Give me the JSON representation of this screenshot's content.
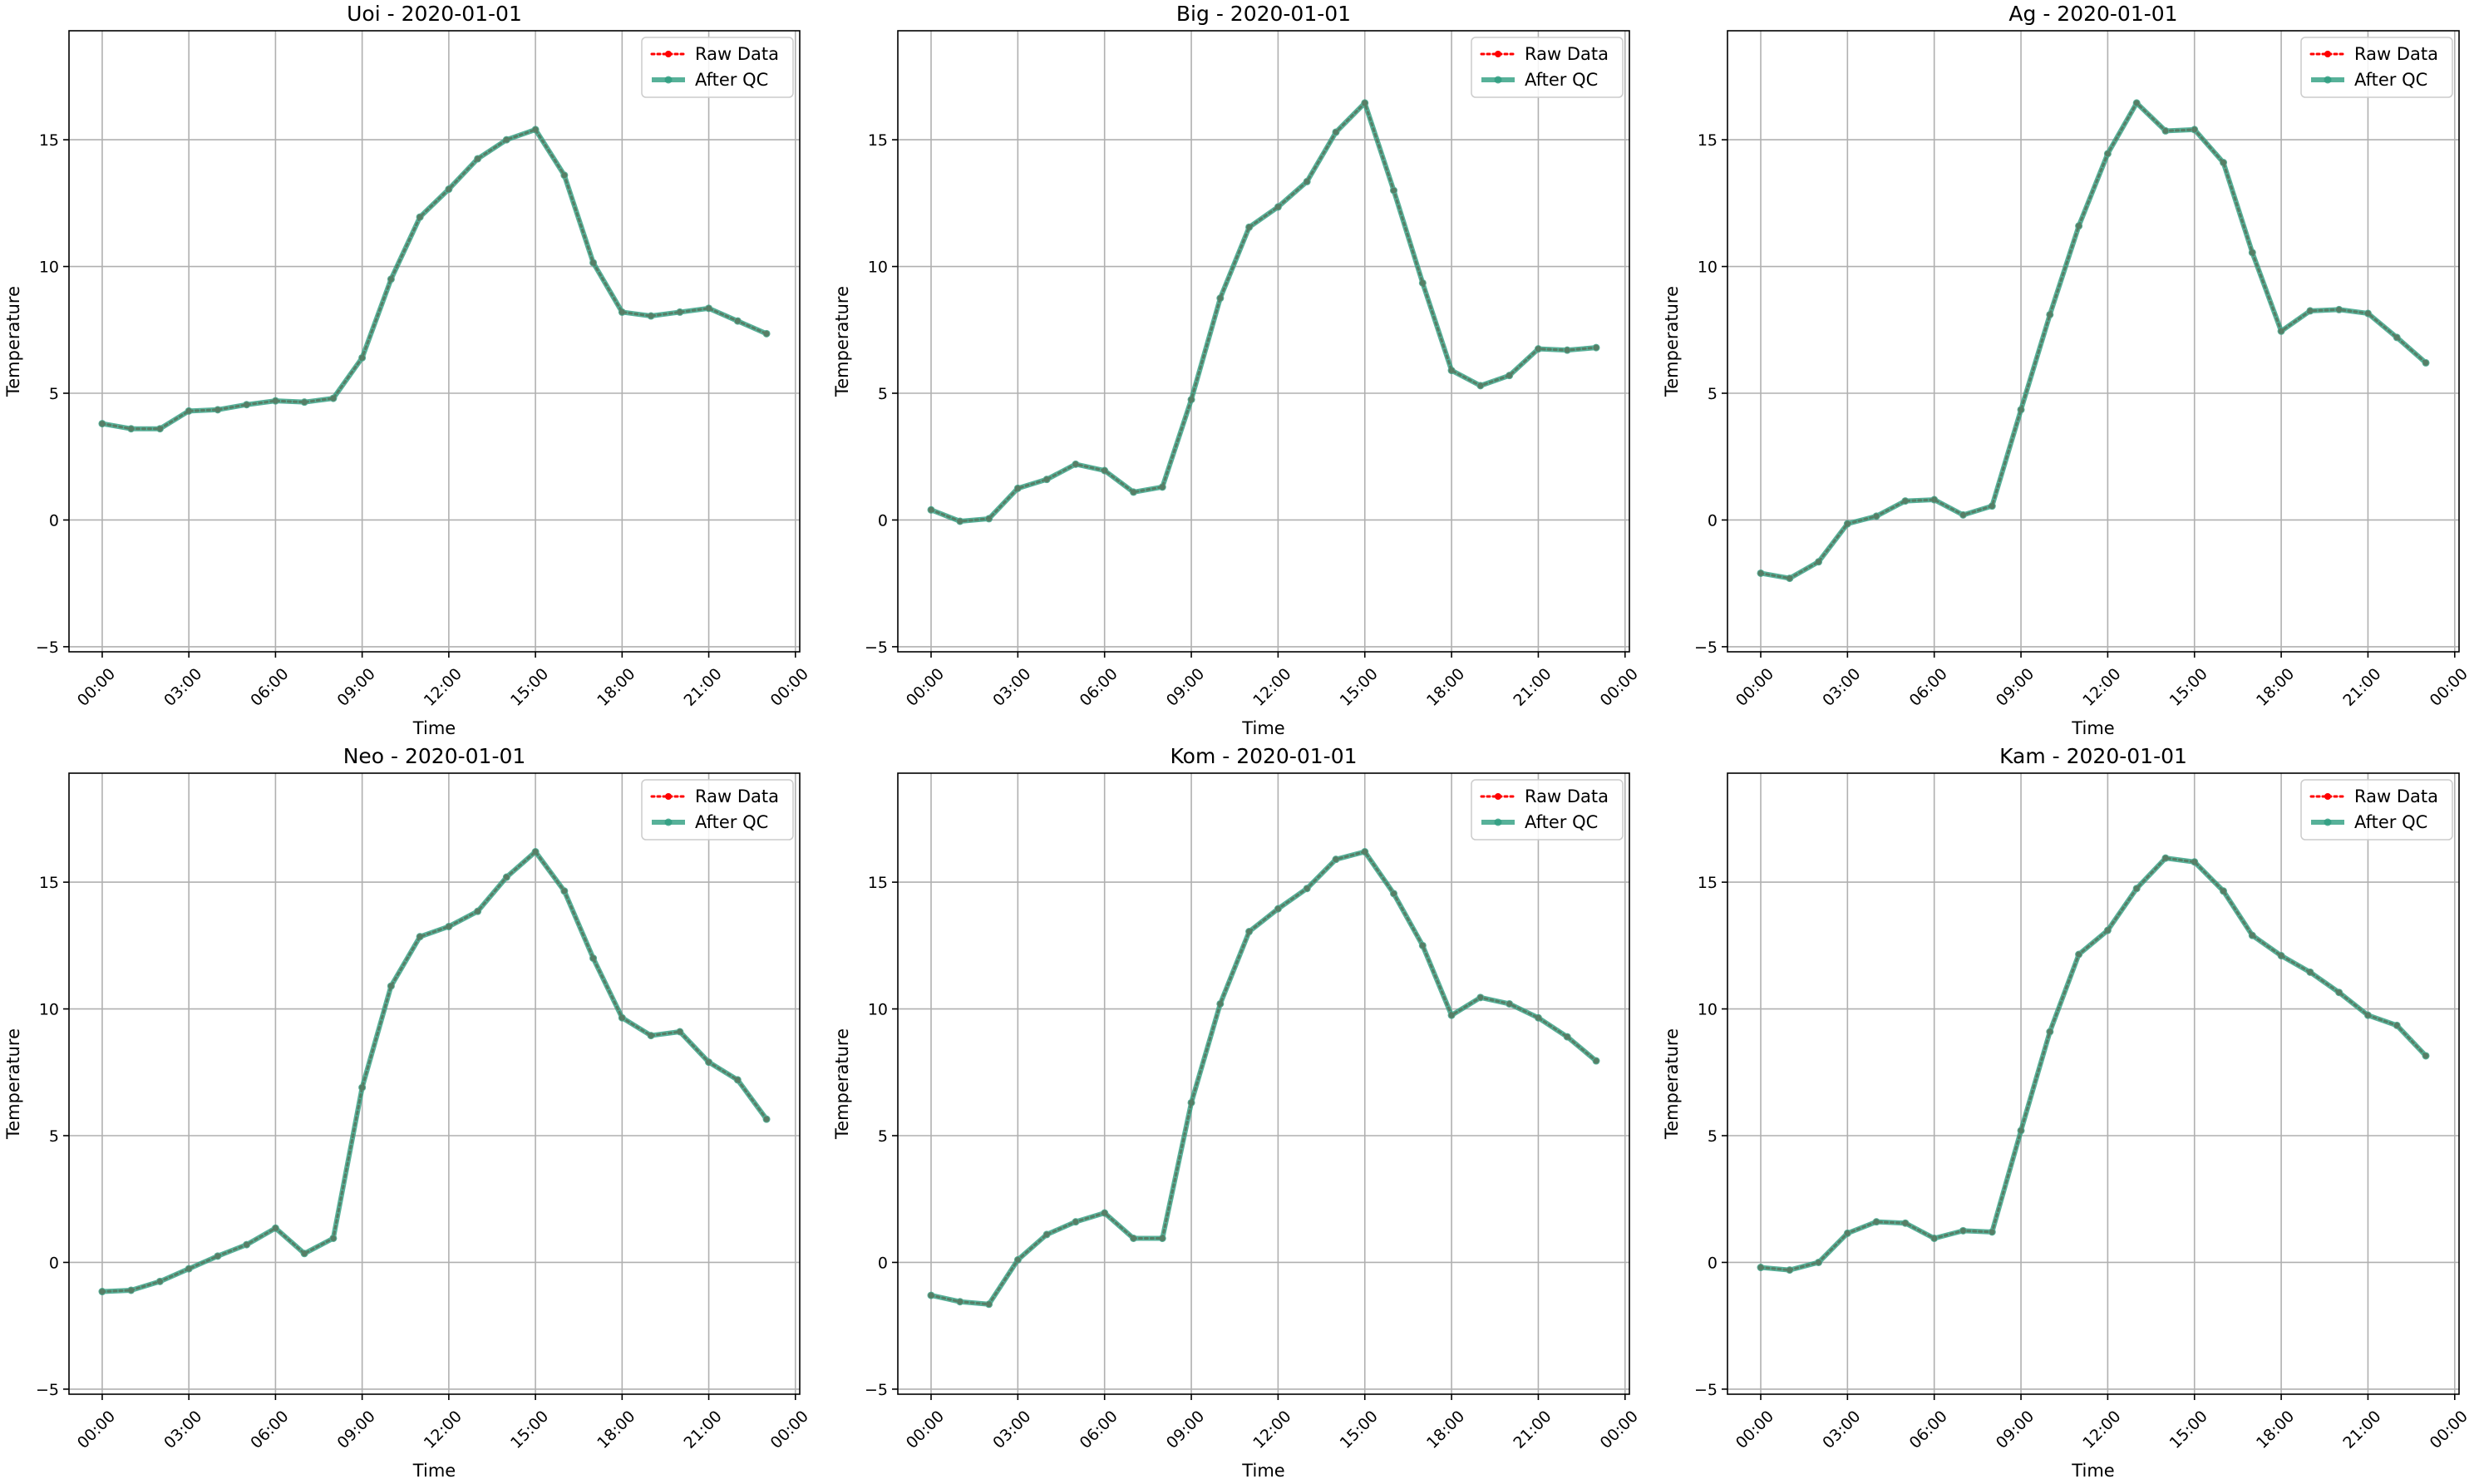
{
  "colors": {
    "raw": "#ff0000",
    "qc": "#2e9e80",
    "grid": "#b0b0b0",
    "frame": "#000000"
  },
  "legend": {
    "raw_label": "Raw Data",
    "qc_label": "After QC",
    "placement": "upper right"
  },
  "chart_data": [
    {
      "type": "line",
      "title": "Uoi - 2020-01-01",
      "xlabel": "Time",
      "ylabel": "Temperature",
      "xtick_labels": [
        "00:00",
        "03:00",
        "06:00",
        "09:00",
        "12:00",
        "15:00",
        "18:00",
        "21:00",
        "00:00"
      ],
      "yticks": [
        -5,
        0,
        5,
        10,
        15
      ],
      "ylim": [
        -5.2,
        19.3
      ],
      "xlim_hours": [
        -1.15,
        24.15
      ],
      "grid": true,
      "x_hours": [
        0,
        1,
        2,
        3,
        4,
        5,
        6,
        7,
        8,
        9,
        10,
        11,
        12,
        13,
        14,
        15,
        16,
        17,
        18,
        19,
        20,
        21,
        22,
        23
      ],
      "series": [
        {
          "name": "Raw Data",
          "values": [
            3.8,
            3.6,
            3.6,
            4.3,
            4.35,
            4.55,
            4.7,
            4.65,
            4.8,
            6.4,
            9.5,
            11.95,
            13.05,
            14.25,
            15.0,
            15.4,
            13.6,
            10.15,
            8.2,
            8.05,
            8.2,
            8.35,
            7.85,
            7.35
          ]
        },
        {
          "name": "After QC",
          "values": [
            3.8,
            3.6,
            3.6,
            4.3,
            4.35,
            4.55,
            4.7,
            4.65,
            4.8,
            6.4,
            9.5,
            11.95,
            13.05,
            14.25,
            15.0,
            15.4,
            13.6,
            10.15,
            8.2,
            8.05,
            8.2,
            8.35,
            7.85,
            7.35
          ]
        }
      ]
    },
    {
      "type": "line",
      "title": "Big - 2020-01-01",
      "xlabel": "Time",
      "ylabel": "Temperature",
      "xtick_labels": [
        "00:00",
        "03:00",
        "06:00",
        "09:00",
        "12:00",
        "15:00",
        "18:00",
        "21:00",
        "00:00"
      ],
      "yticks": [
        -5,
        0,
        5,
        10,
        15
      ],
      "ylim": [
        -5.2,
        19.3
      ],
      "xlim_hours": [
        -1.15,
        24.15
      ],
      "grid": true,
      "x_hours": [
        0,
        1,
        2,
        3,
        4,
        5,
        6,
        7,
        8,
        9,
        10,
        11,
        12,
        13,
        14,
        15,
        16,
        17,
        18,
        19,
        20,
        21,
        22,
        23
      ],
      "series": [
        {
          "name": "Raw Data",
          "values": [
            0.4,
            -0.05,
            0.05,
            1.25,
            1.6,
            2.2,
            1.95,
            1.1,
            1.3,
            4.75,
            8.75,
            11.55,
            12.35,
            13.35,
            15.3,
            16.45,
            13.0,
            9.35,
            5.9,
            5.3,
            5.7,
            6.75,
            6.7,
            6.8
          ]
        },
        {
          "name": "After QC",
          "values": [
            0.4,
            -0.05,
            0.05,
            1.25,
            1.6,
            2.2,
            1.95,
            1.1,
            1.3,
            4.75,
            8.75,
            11.55,
            12.35,
            13.35,
            15.3,
            16.45,
            13.0,
            9.35,
            5.9,
            5.3,
            5.7,
            6.75,
            6.7,
            6.8
          ]
        }
      ]
    },
    {
      "type": "line",
      "title": "Ag - 2020-01-01",
      "xlabel": "Time",
      "ylabel": "Temperature",
      "xtick_labels": [
        "00:00",
        "03:00",
        "06:00",
        "09:00",
        "12:00",
        "15:00",
        "18:00",
        "21:00",
        "00:00"
      ],
      "yticks": [
        -5,
        0,
        5,
        10,
        15
      ],
      "ylim": [
        -5.2,
        19.3
      ],
      "xlim_hours": [
        -1.15,
        24.15
      ],
      "grid": true,
      "x_hours": [
        0,
        1,
        2,
        3,
        4,
        5,
        6,
        7,
        8,
        9,
        10,
        11,
        12,
        13,
        14,
        15,
        16,
        17,
        18,
        19,
        20,
        21,
        22,
        23
      ],
      "series": [
        {
          "name": "Raw Data",
          "values": [
            -2.1,
            -2.3,
            -1.65,
            -0.15,
            0.15,
            0.75,
            0.8,
            0.2,
            0.55,
            4.35,
            8.1,
            11.6,
            14.45,
            16.45,
            15.35,
            15.4,
            14.1,
            10.55,
            7.45,
            8.25,
            8.3,
            8.15,
            7.2,
            6.2
          ]
        },
        {
          "name": "After QC",
          "values": [
            -2.1,
            -2.3,
            -1.65,
            -0.15,
            0.15,
            0.75,
            0.8,
            0.2,
            0.55,
            4.35,
            8.1,
            11.6,
            14.45,
            16.45,
            15.35,
            15.4,
            14.1,
            10.55,
            7.45,
            8.25,
            8.3,
            8.15,
            7.2,
            6.2
          ]
        }
      ]
    },
    {
      "type": "line",
      "title": "Neo - 2020-01-01",
      "xlabel": "Time",
      "ylabel": "Temperature",
      "xtick_labels": [
        "00:00",
        "03:00",
        "06:00",
        "09:00",
        "12:00",
        "15:00",
        "18:00",
        "21:00",
        "00:00"
      ],
      "yticks": [
        -5,
        0,
        5,
        10,
        15
      ],
      "ylim": [
        -5.2,
        19.3
      ],
      "xlim_hours": [
        -1.15,
        24.15
      ],
      "grid": true,
      "x_hours": [
        0,
        1,
        2,
        3,
        4,
        5,
        6,
        7,
        8,
        9,
        10,
        11,
        12,
        13,
        14,
        15,
        16,
        17,
        18,
        19,
        20,
        21,
        22,
        23
      ],
      "series": [
        {
          "name": "Raw Data",
          "values": [
            -1.15,
            -1.1,
            -0.75,
            -0.25,
            0.25,
            0.7,
            1.35,
            0.35,
            0.95,
            6.9,
            10.9,
            12.85,
            13.25,
            13.85,
            15.2,
            16.2,
            14.65,
            12.0,
            9.65,
            8.95,
            9.1,
            7.9,
            7.2,
            5.65
          ]
        },
        {
          "name": "After QC",
          "values": [
            -1.15,
            -1.1,
            -0.75,
            -0.25,
            0.25,
            0.7,
            1.35,
            0.35,
            0.95,
            6.9,
            10.9,
            12.85,
            13.25,
            13.85,
            15.2,
            16.2,
            14.65,
            12.0,
            9.65,
            8.95,
            9.1,
            7.9,
            7.2,
            5.65
          ]
        }
      ]
    },
    {
      "type": "line",
      "title": "Kom - 2020-01-01",
      "xlabel": "Time",
      "ylabel": "Temperature",
      "xtick_labels": [
        "00:00",
        "03:00",
        "06:00",
        "09:00",
        "12:00",
        "15:00",
        "18:00",
        "21:00",
        "00:00"
      ],
      "yticks": [
        -5,
        0,
        5,
        10,
        15
      ],
      "ylim": [
        -5.2,
        19.3
      ],
      "xlim_hours": [
        -1.15,
        24.15
      ],
      "grid": true,
      "x_hours": [
        0,
        1,
        2,
        3,
        4,
        5,
        6,
        7,
        8,
        9,
        10,
        11,
        12,
        13,
        14,
        15,
        16,
        17,
        18,
        19,
        20,
        21,
        22,
        23
      ],
      "series": [
        {
          "name": "Raw Data",
          "values": [
            -1.3,
            -1.55,
            -1.65,
            0.1,
            1.1,
            1.6,
            1.95,
            0.95,
            0.95,
            6.3,
            10.2,
            13.05,
            13.95,
            14.75,
            15.9,
            16.2,
            14.55,
            12.5,
            9.75,
            10.45,
            10.2,
            9.65,
            8.9,
            7.95
          ]
        },
        {
          "name": "After QC",
          "values": [
            -1.3,
            -1.55,
            -1.65,
            0.1,
            1.1,
            1.6,
            1.95,
            0.95,
            0.95,
            6.3,
            10.2,
            13.05,
            13.95,
            14.75,
            15.9,
            16.2,
            14.55,
            12.5,
            9.75,
            10.45,
            10.2,
            9.65,
            8.9,
            7.95
          ]
        }
      ]
    },
    {
      "type": "line",
      "title": "Kam - 2020-01-01",
      "xlabel": "Time",
      "ylabel": "Temperature",
      "xtick_labels": [
        "00:00",
        "03:00",
        "06:00",
        "09:00",
        "12:00",
        "15:00",
        "18:00",
        "21:00",
        "00:00"
      ],
      "yticks": [
        -5,
        0,
        5,
        10,
        15
      ],
      "ylim": [
        -5.2,
        19.3
      ],
      "xlim_hours": [
        -1.15,
        24.15
      ],
      "grid": true,
      "x_hours": [
        0,
        1,
        2,
        3,
        4,
        5,
        6,
        7,
        8,
        9,
        10,
        11,
        12,
        13,
        14,
        15,
        16,
        17,
        18,
        19,
        20,
        21,
        22,
        23
      ],
      "series": [
        {
          "name": "Raw Data",
          "values": [
            -0.2,
            -0.3,
            0.0,
            1.15,
            1.6,
            1.55,
            0.95,
            1.25,
            1.2,
            5.2,
            9.1,
            12.15,
            13.1,
            14.75,
            15.95,
            15.8,
            14.65,
            12.9,
            12.1,
            11.45,
            10.65,
            9.75,
            9.35,
            8.15
          ]
        },
        {
          "name": "After QC",
          "values": [
            -0.2,
            -0.3,
            0.0,
            1.15,
            1.6,
            1.55,
            0.95,
            1.25,
            1.2,
            5.2,
            9.1,
            12.15,
            13.1,
            14.75,
            15.95,
            15.8,
            14.65,
            12.9,
            12.1,
            11.45,
            10.65,
            9.75,
            9.35,
            8.15
          ]
        }
      ]
    }
  ]
}
